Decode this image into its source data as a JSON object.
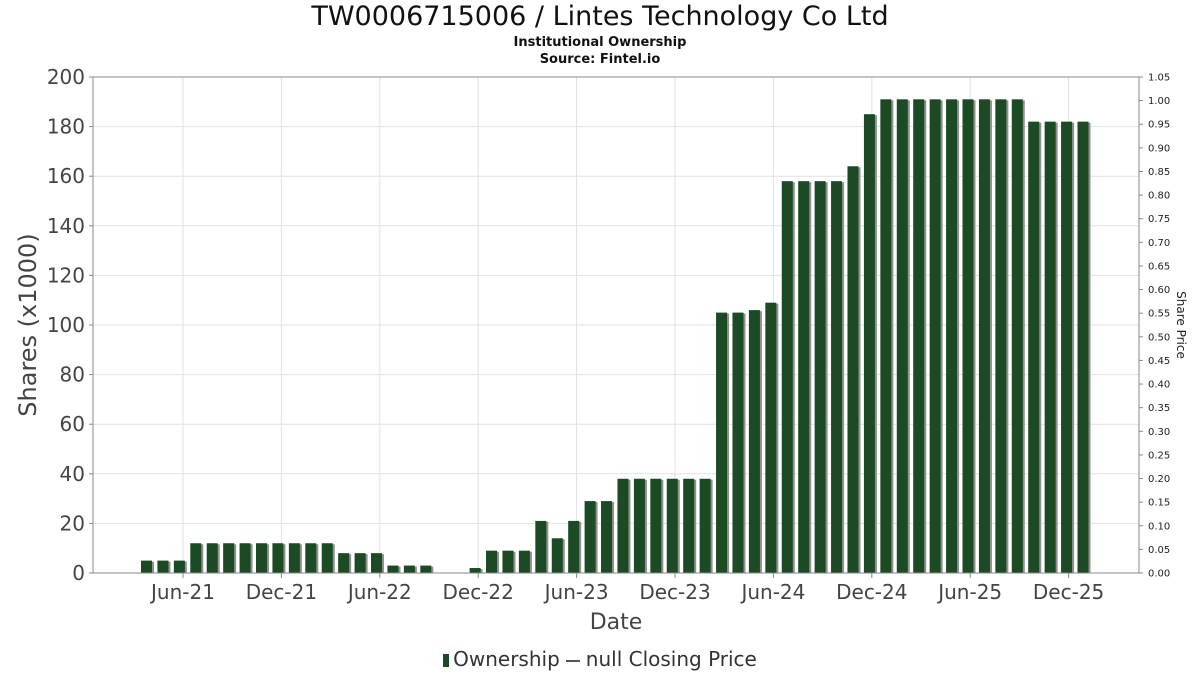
{
  "chart_data": {
    "type": "bar",
    "title": "TW0006715006 / Lintes Technology Co Ltd",
    "subtitles": [
      "Institutional Ownership",
      "Source: Fintel.io"
    ],
    "xlabel": "Date",
    "ylabel": "Shares (x1000)",
    "y2label": "Share Price",
    "ylim": [
      0,
      200
    ],
    "y2lim": [
      0,
      1.05
    ],
    "yticks": [
      "0",
      "20",
      "40",
      "60",
      "80",
      "100",
      "120",
      "140",
      "160",
      "180",
      "200"
    ],
    "y2ticks": [
      "0.00",
      "0.05",
      "0.10",
      "0.15",
      "0.20",
      "0.25",
      "0.30",
      "0.35",
      "0.40",
      "0.45",
      "0.50",
      "0.55",
      "0.60",
      "0.65",
      "0.70",
      "0.75",
      "0.80",
      "0.85",
      "0.90",
      "0.95",
      "1.00",
      "1.05"
    ],
    "xticks": [
      "Jun-21",
      "Dec-21",
      "Jun-22",
      "Dec-22",
      "Jun-23",
      "Dec-23",
      "Jun-24",
      "Dec-24",
      "Jun-25",
      "Dec-25"
    ],
    "grid": true,
    "legend_position": "bottom",
    "series": [
      {
        "name": "Ownership",
        "color": "#1b4a25",
        "values": [
          5,
          5,
          5,
          12,
          12,
          12,
          12,
          12,
          12,
          12,
          12,
          12,
          8,
          8,
          8,
          3,
          3,
          3,
          0,
          0,
          2,
          9,
          9,
          9,
          21,
          14,
          21,
          29,
          29,
          38,
          38,
          38,
          38,
          38,
          38,
          105,
          105,
          106,
          109,
          158,
          158,
          158,
          158,
          164,
          185,
          191,
          191,
          191,
          191,
          191,
          191,
          191,
          191,
          191,
          182,
          182,
          182,
          182
        ]
      },
      {
        "name": "null Closing Price",
        "color": "#555555",
        "values": []
      }
    ]
  },
  "legend": {
    "ownership_label": "Ownership",
    "price_label": "null Closing Price"
  }
}
